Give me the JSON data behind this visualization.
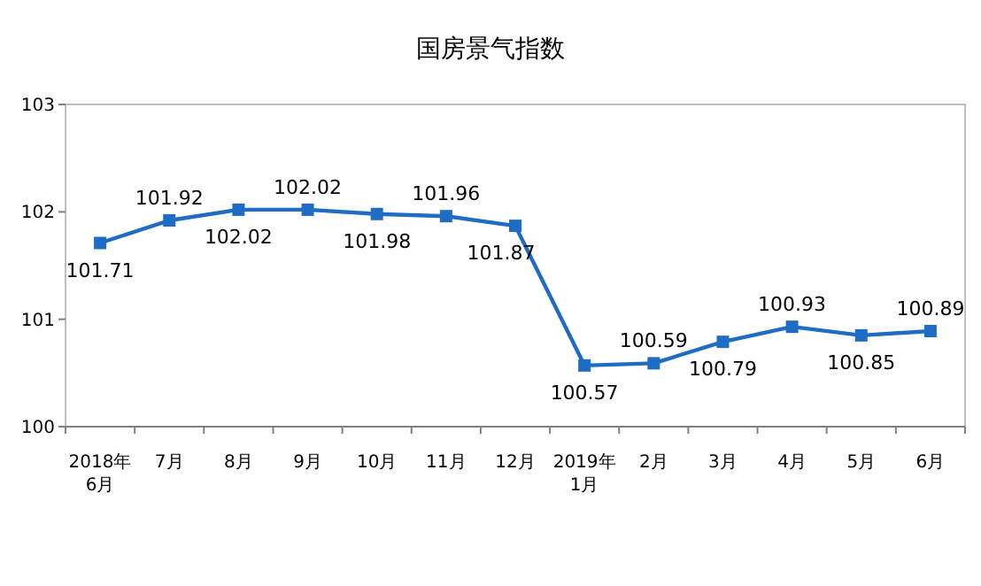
{
  "chart_data": {
    "type": "line",
    "title": "国房景气指数",
    "categories": [
      "2018年6月",
      "7月",
      "8月",
      "9月",
      "10月",
      "11月",
      "12月",
      "2019年1月",
      "2月",
      "3月",
      "4月",
      "5月",
      "6月"
    ],
    "series": [
      {
        "color": "#1f6cc4",
        "values": [
          101.71,
          101.92,
          102.02,
          102.02,
          101.98,
          101.96,
          101.87,
          100.57,
          100.59,
          100.79,
          100.93,
          100.85,
          100.89
        ]
      }
    ],
    "ylim": [
      100,
      103
    ],
    "yticks": [
      100,
      101,
      102,
      103
    ],
    "data_labels": true,
    "marker": "square",
    "grid": false
  }
}
